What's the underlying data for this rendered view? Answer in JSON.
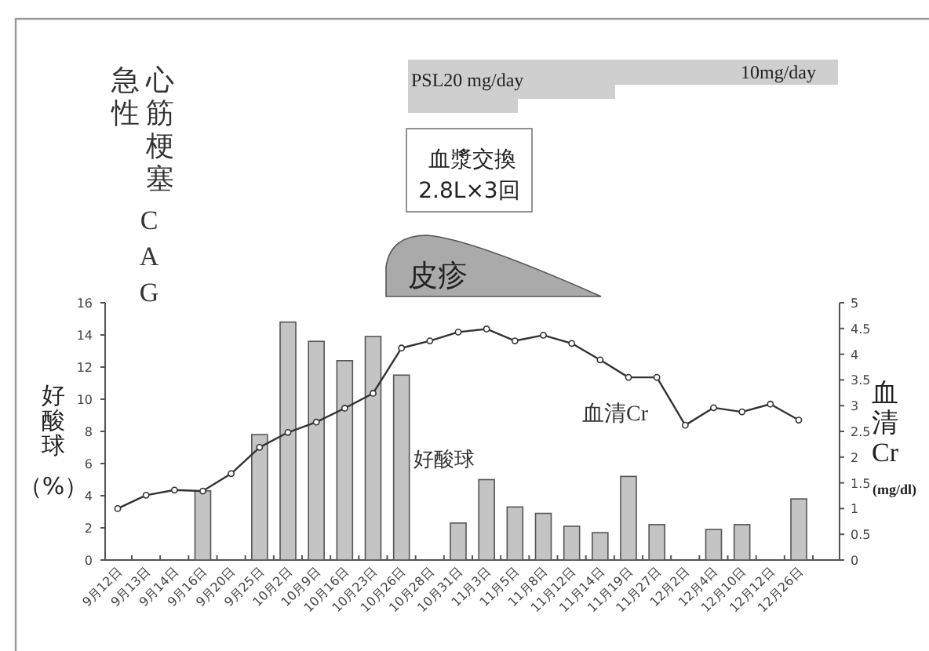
{
  "chart_data": {
    "type": "bar",
    "categories": [
      "9月12日",
      "9月13日",
      "9月14日",
      "9月16日",
      "9月20日",
      "9月25日",
      "10月2日",
      "10月9日",
      "10月16日",
      "10月23日",
      "10月26日",
      "10月28日",
      "10月31日",
      "11月3日",
      "11月5日",
      "11月8日",
      "11月12日",
      "11月14日",
      "11月19日",
      "11月27日",
      "12月2日",
      "12月4日",
      "12月10日",
      "12月12日",
      "12月26日"
    ],
    "series": [
      {
        "name": "好酸球",
        "color": "#c4c4c4",
        "values": [
          null,
          null,
          null,
          4.3,
          null,
          7.8,
          14.8,
          13.6,
          12.4,
          13.9,
          11.5,
          null,
          2.3,
          5.0,
          3.3,
          2.9,
          2.1,
          1.7,
          5.2,
          2.2,
          null,
          1.9,
          2.2,
          null,
          3.8
        ]
      },
      {
        "name": "血清Cr",
        "type": "line",
        "axis": "y2",
        "color": "#333333",
        "values": [
          1.0,
          1.26,
          1.36,
          1.34,
          1.68,
          2.19,
          2.48,
          2.68,
          2.95,
          3.24,
          4.12,
          4.26,
          4.43,
          4.49,
          4.26,
          4.37,
          4.21,
          3.89,
          3.55,
          3.55,
          2.62,
          2.96,
          2.88,
          3.03,
          2.72
        ]
      }
    ],
    "ylabel": "好酸球（%）",
    "y2label": "血清Cr(mg/dl)",
    "ylim": [
      0,
      16
    ],
    "yticks": [
      0,
      2,
      4,
      6,
      8,
      10,
      12,
      14,
      16
    ],
    "y2lim": [
      0,
      5
    ],
    "y2ticks": [
      0,
      0.5,
      1,
      1.5,
      2,
      2.5,
      3,
      3.5,
      4,
      4.5,
      5
    ],
    "grid": false,
    "marker": "circle",
    "line_style": "solid",
    "annotations": [
      "急性",
      "心筋梗塞",
      "CAG",
      "PSL20 mg/day",
      "10mg/day",
      "血漿交換",
      "2.8L×3回",
      "皮疹"
    ]
  }
}
